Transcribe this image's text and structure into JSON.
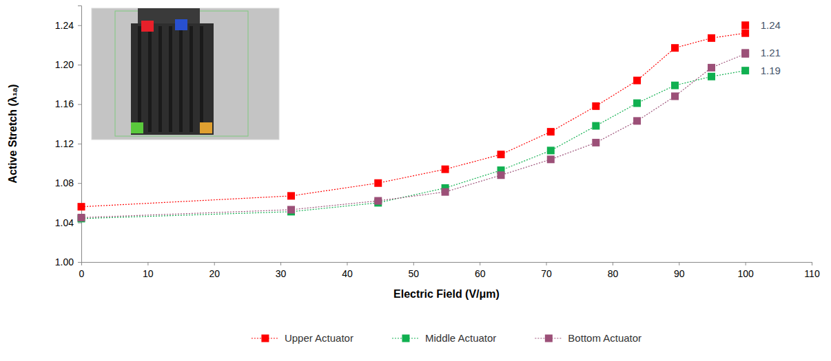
{
  "chart_data": {
    "type": "line",
    "x_label": "Electric Field (V/μm)",
    "y_label": "Active Stretch (λ₁ₐ)",
    "xlim": [
      0,
      110
    ],
    "xticks": [
      0,
      10,
      20,
      30,
      40,
      50,
      60,
      70,
      80,
      90,
      100,
      110
    ],
    "ylim": [
      1.0,
      1.26
    ],
    "yticks": [
      {
        "value": 1.0,
        "label": "1.00"
      },
      {
        "value": 1.04,
        "label": "1.04"
      },
      {
        "value": 1.08,
        "label": "1.08"
      },
      {
        "value": 1.12,
        "label": "1.12"
      },
      {
        "value": 1.16,
        "label": "1.16"
      },
      {
        "value": 1.2,
        "label": "1.20"
      },
      {
        "value": 1.24,
        "label": "1.24"
      }
    ],
    "grid": false,
    "legend": "bottom",
    "marker": "square",
    "line_style": "dotted",
    "series": [
      {
        "name": "Upper Actuator",
        "color": "#ff0000",
        "x": [
          0,
          31.6,
          44.7,
          54.8,
          63.2,
          70.7,
          77.5,
          83.7,
          89.4,
          94.9,
          100,
          100
        ],
        "values": [
          1.056,
          1.067,
          1.08,
          1.094,
          1.109,
          1.132,
          1.158,
          1.184,
          1.217,
          1.227,
          1.232,
          1.24
        ]
      },
      {
        "name": "Middle Actuator",
        "color": "#10b050",
        "x": [
          0,
          31.6,
          44.7,
          54.8,
          63.2,
          70.7,
          77.5,
          83.7,
          89.4,
          94.9,
          100
        ],
        "values": [
          1.044,
          1.051,
          1.06,
          1.075,
          1.093,
          1.113,
          1.138,
          1.161,
          1.179,
          1.188,
          1.194
        ]
      },
      {
        "name": "Bottom Actuator",
        "color": "#9c5078",
        "x": [
          0,
          31.6,
          44.7,
          54.8,
          63.2,
          70.7,
          77.5,
          83.7,
          89.4,
          94.9,
          100,
          100
        ],
        "values": [
          1.045,
          1.053,
          1.062,
          1.071,
          1.088,
          1.104,
          1.121,
          1.143,
          1.168,
          1.197,
          1.211,
          1.212
        ]
      }
    ],
    "annotations": [
      {
        "text": "1.24",
        "x": 100,
        "y": 1.24
      },
      {
        "text": "1.21",
        "x": 100,
        "y": 1.212
      },
      {
        "text": "1.19",
        "x": 100,
        "y": 1.194
      }
    ]
  }
}
